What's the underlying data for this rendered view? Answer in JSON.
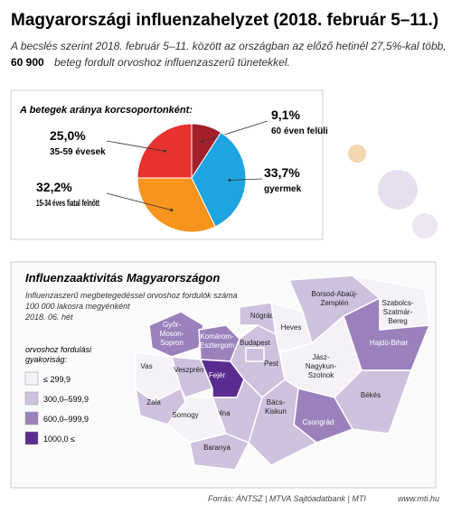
{
  "header": {
    "title": "Magyarországi influenzahelyzet (2018. február 5–11.)",
    "subtitle_1": "A becslés szerint 2018. február 5–11. között az országban az előző hetinél 27,5%-kal több,",
    "subtitle_bold": "60 900",
    "subtitle_2": "beteg fordult orvoshoz influenzaszerű tünetekkel."
  },
  "chart_data": {
    "type": "pie",
    "title": "A betegek aránya korcsoportonként:",
    "categories": [
      "60 éven felüli",
      "gyermek",
      "15-34 éves fiatal felnőtt",
      "35-59 évesek"
    ],
    "values": [
      9.1,
      33.7,
      32.2,
      25.0
    ],
    "value_labels": [
      "9,1%",
      "33,7%",
      "32,2%",
      "25,0%"
    ],
    "colors": [
      "#a3202b",
      "#1ea4e1",
      "#f7941d",
      "#e8322f"
    ]
  },
  "map": {
    "title": "Influenzaaktivitás Magyarországon",
    "subtitle": [
      "Influenzaszerű megbetegedéssel orvoshoz fordulók száma",
      "100 000 lakosra megyénként",
      "2018. 06. hét"
    ],
    "legend": {
      "title": [
        "orvoshoz fordulási",
        "gyakoriság:"
      ],
      "items": [
        {
          "label": "≤ 299,9",
          "color": "#f4f1f7"
        },
        {
          "label": "300,0–599,9",
          "color": "#cdc1dd"
        },
        {
          "label": "600,0–999,9",
          "color": "#9b81bc"
        },
        {
          "label": "1000,0 ≤",
          "color": "#5b2c8f"
        }
      ]
    },
    "regions": [
      {
        "label": [
          "Győr-",
          "Moson-",
          "Sopron"
        ],
        "class": 2
      },
      {
        "label": [
          "Komárom-",
          "Esztergom"
        ],
        "class": 2
      },
      {
        "label": [
          "Vas"
        ],
        "class": 0
      },
      {
        "label": [
          "Veszprém"
        ],
        "class": 1
      },
      {
        "label": [
          "Zala"
        ],
        "class": 1
      },
      {
        "label": [
          "Fejér"
        ],
        "class": 3
      },
      {
        "label": [
          "Pest"
        ],
        "class": 1
      },
      {
        "label": [
          "Budapest"
        ],
        "class": 1
      },
      {
        "label": [
          "Nógrád"
        ],
        "class": 1
      },
      {
        "label": [
          "Heves"
        ],
        "class": 0
      },
      {
        "label": [
          "Borsod-Abaúj-",
          "Zemplén"
        ],
        "class": 1
      },
      {
        "label": [
          "Szabolcs-",
          "Szatmár-",
          "Bereg"
        ],
        "class": 0
      },
      {
        "label": [
          "Hajdú-Bihar"
        ],
        "class": 2
      },
      {
        "label": [
          "Jász-",
          "Nagykun-",
          "Szolnok"
        ],
        "class": 0
      },
      {
        "label": [
          "Békés"
        ],
        "class": 1
      },
      {
        "label": [
          "Csongrád"
        ],
        "class": 2
      },
      {
        "label": [
          "Bács-",
          "Kiskun"
        ],
        "class": 1
      },
      {
        "label": [
          "Tolna"
        ],
        "class": 1
      },
      {
        "label": [
          "Somogy"
        ],
        "class": 0
      },
      {
        "label": [
          "Baranya"
        ],
        "class": 1
      }
    ]
  },
  "footer": {
    "source": "Forrás: ÁNTSZ | MTVA Sajtóadatbank | MTI",
    "site": "www.mti.hu"
  }
}
